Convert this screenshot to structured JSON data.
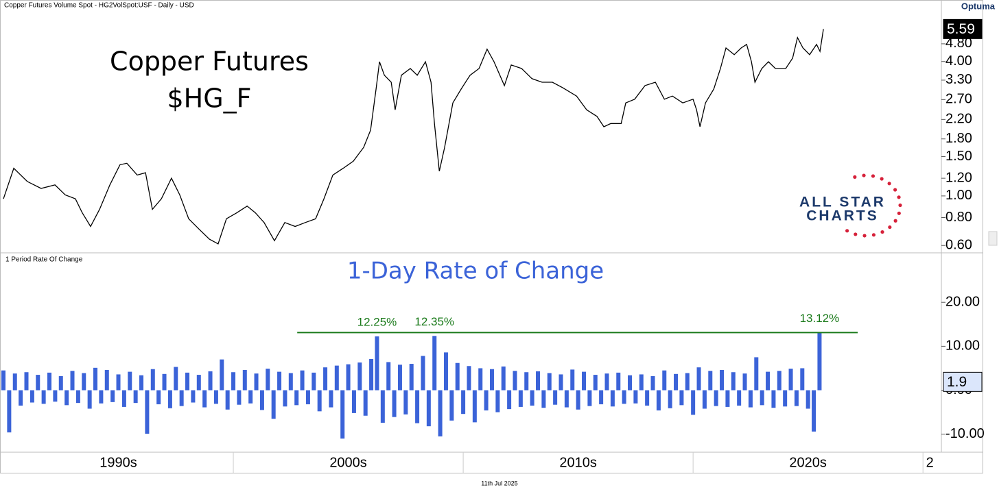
{
  "header": {
    "title": "Copper Futures Volume Spot - HG2VolSpot:USF - Daily - USD",
    "brand": "Optuma",
    "pane2_label": "1 Period Rate Of Change",
    "date": "11th Jul 2025"
  },
  "logo": {
    "line1": "ALL STAR",
    "line2": "CHARTS"
  },
  "chart_data": [
    {
      "type": "line",
      "title": "Copper Futures",
      "subtitle": "$HG_F",
      "log_scale": true,
      "color": "#000000",
      "x": [
        1990.0,
        1990.45,
        1991.04,
        1991.64,
        1992.24,
        1992.69,
        1993.13,
        1993.43,
        1993.79,
        1994.18,
        1994.63,
        1995.07,
        1995.37,
        1995.82,
        1996.18,
        1996.48,
        1996.87,
        1997.31,
        1997.67,
        1998.06,
        1998.51,
        1998.96,
        1999.34,
        1999.7,
        2000.15,
        2000.6,
        2000.96,
        2001.34,
        2001.79,
        2002.24,
        2002.69,
        2003.13,
        2003.58,
        2003.94,
        2004.33,
        2004.78,
        2005.22,
        2005.67,
        2005.97,
        2006.21,
        2006.36,
        2006.57,
        2006.87,
        2007.04,
        2007.31,
        2007.7,
        2008.0,
        2008.36,
        2008.6,
        2008.75,
        2008.96,
        2009.19,
        2009.55,
        2009.91,
        2010.3,
        2010.69,
        2011.04,
        2011.34,
        2011.79,
        2012.09,
        2012.54,
        2012.99,
        2013.43,
        2013.88,
        2014.33,
        2014.93,
        2015.37,
        2015.82,
        2016.12,
        2016.42,
        2016.87,
        2017.07,
        2017.46,
        2017.91,
        2018.36,
        2018.75,
        2019.1,
        2019.55,
        2020.0,
        2020.15,
        2020.3,
        2020.54,
        2020.9,
        2021.19,
        2021.43,
        2021.79,
        2022.09,
        2022.33,
        2022.54,
        2022.69,
        2022.99,
        2023.28,
        2023.58,
        2024.03,
        2024.33,
        2024.54,
        2024.78,
        2025.07,
        2025.37,
        2025.52,
        2025.67
      ],
      "values": [
        0.97,
        1.33,
        1.16,
        1.08,
        1.12,
        1.01,
        0.97,
        0.84,
        0.73,
        0.87,
        1.12,
        1.38,
        1.4,
        1.24,
        1.27,
        0.87,
        0.97,
        1.2,
        1.01,
        0.79,
        0.71,
        0.64,
        0.61,
        0.79,
        0.84,
        0.9,
        0.84,
        0.76,
        0.63,
        0.76,
        0.73,
        0.76,
        0.79,
        0.97,
        1.24,
        1.33,
        1.43,
        1.65,
        1.97,
        3.01,
        3.99,
        3.47,
        3.23,
        2.43,
        3.47,
        3.72,
        3.47,
        3.99,
        3.23,
        2.11,
        1.29,
        1.65,
        2.61,
        3.01,
        3.47,
        3.72,
        4.54,
        3.99,
        3.12,
        3.86,
        3.72,
        3.35,
        3.23,
        3.23,
        3.05,
        2.8,
        2.43,
        2.27,
        2.04,
        2.11,
        2.11,
        2.61,
        2.71,
        3.12,
        3.23,
        2.71,
        2.8,
        2.61,
        2.71,
        2.43,
        2.04,
        2.61,
        3.01,
        3.72,
        4.6,
        4.29,
        4.6,
        4.77,
        3.99,
        3.23,
        3.72,
        3.99,
        3.72,
        3.72,
        4.14,
        5.12,
        4.6,
        4.29,
        4.77,
        4.44,
        5.59
      ],
      "last_value": 5.59,
      "xlim": [
        1990,
        2030.8
      ],
      "ylim": [
        0.56,
        6.64
      ],
      "yticks": [
        {
          "value": 0.6,
          "label": "0.60"
        },
        {
          "value": 0.8,
          "label": "0.80"
        },
        {
          "value": 1,
          "label": "1.00"
        },
        {
          "value": 1.2,
          "label": "1.20"
        },
        {
          "value": 1.5,
          "label": "1.50"
        },
        {
          "value": 1.8,
          "label": "1.80"
        },
        {
          "value": 2.2,
          "label": "2.20"
        },
        {
          "value": 2.7,
          "label": "2.70"
        },
        {
          "value": 3.3,
          "label": "3.30"
        },
        {
          "value": 4,
          "label": "4.00"
        },
        {
          "value": 4.8,
          "label": "4.80"
        }
      ]
    },
    {
      "type": "bar",
      "title": "1-Day Rate of Change",
      "color": "#3b63d8",
      "x": [
        1990,
        1990.25,
        1990.5,
        1990.75,
        1991,
        1991.25,
        1991.5,
        1991.75,
        1992,
        1992.25,
        1992.5,
        1992.75,
        1993,
        1993.25,
        1993.5,
        1993.75,
        1994,
        1994.25,
        1994.5,
        1994.75,
        1995,
        1995.25,
        1995.5,
        1995.75,
        1996,
        1996.25,
        1996.5,
        1996.75,
        1997,
        1997.25,
        1997.5,
        1997.75,
        1998,
        1998.25,
        1998.5,
        1998.75,
        1999,
        1999.25,
        1999.5,
        1999.75,
        2000,
        2000.25,
        2000.5,
        2000.75,
        2001,
        2001.25,
        2001.5,
        2001.75,
        2002,
        2002.25,
        2002.5,
        2002.75,
        2003,
        2003.25,
        2003.5,
        2003.75,
        2004,
        2004.25,
        2004.5,
        2004.75,
        2005,
        2005.25,
        2005.5,
        2005.75,
        2006,
        2006.25,
        2006.5,
        2006.75,
        2007,
        2007.25,
        2007.5,
        2007.75,
        2008,
        2008.25,
        2008.5,
        2008.75,
        2009,
        2009.25,
        2009.5,
        2009.75,
        2010,
        2010.25,
        2010.5,
        2010.75,
        2011,
        2011.25,
        2011.5,
        2011.75,
        2012,
        2012.25,
        2012.5,
        2012.75,
        2013,
        2013.25,
        2013.5,
        2013.75,
        2014,
        2014.25,
        2014.5,
        2014.75,
        2015,
        2015.25,
        2015.5,
        2015.75,
        2016,
        2016.25,
        2016.5,
        2016.75,
        2017,
        2017.25,
        2017.5,
        2017.75,
        2018,
        2018.25,
        2018.5,
        2018.75,
        2019,
        2019.25,
        2019.5,
        2019.75,
        2020,
        2020.25,
        2020.5,
        2020.75,
        2021,
        2021.25,
        2021.5,
        2021.75,
        2022,
        2022.25,
        2022.5,
        2022.75,
        2023,
        2023.25,
        2023.5,
        2023.75,
        2024,
        2024.25,
        2024.5,
        2024.75,
        2025,
        2025.25,
        2025.5
      ],
      "values": [
        4.5,
        -9.6,
        3.8,
        -3.5,
        4.1,
        -2.8,
        3.5,
        -3.1,
        4.0,
        -2.6,
        3.2,
        -3.4,
        4.4,
        -2.9,
        3.9,
        -4.2,
        5.1,
        -3.0,
        4.6,
        -2.7,
        3.6,
        -3.8,
        4.2,
        -2.9,
        3.4,
        -9.9,
        4.8,
        -3.2,
        3.7,
        -4.1,
        5.3,
        -3.6,
        4.0,
        -2.8,
        3.5,
        -3.9,
        4.3,
        -3.1,
        7.0,
        -4.4,
        4.1,
        -3.3,
        4.6,
        -3.0,
        3.8,
        -4.5,
        4.9,
        -6.5,
        4.2,
        -3.7,
        3.9,
        -3.4,
        4.5,
        -3.2,
        4.0,
        -4.8,
        5.2,
        -3.9,
        5.6,
        -11.0,
        5.9,
        -5.2,
        6.3,
        -5.8,
        7.1,
        12.25,
        -7.4,
        6.4,
        -6.1,
        5.8,
        -5.5,
        6.0,
        -7.5,
        7.8,
        -8.2,
        12.35,
        -10.5,
        8.6,
        -6.9,
        6.2,
        -5.4,
        5.5,
        -7.3,
        5.0,
        -4.6,
        4.8,
        -5.0,
        5.4,
        -4.3,
        4.4,
        -3.8,
        4.1,
        -3.5,
        4.3,
        -4.0,
        3.9,
        -3.3,
        3.6,
        -3.9,
        4.7,
        -4.4,
        4.2,
        -3.6,
        3.5,
        -3.2,
        3.8,
        -3.7,
        4.0,
        -3.1,
        3.4,
        -3.0,
        3.6,
        -3.5,
        3.2,
        -4.6,
        4.5,
        -4.1,
        3.7,
        -3.4,
        3.9,
        -5.6,
        5.2,
        -4.2,
        4.4,
        -3.6,
        4.6,
        -3.8,
        4.1,
        -3.5,
        3.8,
        -3.9,
        7.5,
        -3.4,
        4.2,
        -4.0,
        4.4,
        -3.7,
        4.9,
        -3.6,
        5.0,
        -4.2,
        -9.4,
        13.12
      ],
      "last_value": 1.9,
      "annotations": [
        {
          "x": 2006.25,
          "value": 12.25,
          "label": "12.25%"
        },
        {
          "x": 2008.75,
          "value": 12.35,
          "label": "12.35%"
        },
        {
          "x": 2025.5,
          "value": 13.12,
          "label": "13.12%"
        }
      ],
      "threshold": {
        "value": 13.12,
        "x": [
          2002.78,
          2027.16
        ],
        "color": "#1a7a1a"
      },
      "xlim": [
        1990,
        2030.8
      ],
      "ylim": [
        -14.1,
        31.1
      ],
      "yticks": [
        {
          "value": -10,
          "label": "-10.00"
        },
        {
          "value": 0,
          "label": "0.00"
        },
        {
          "value": 10,
          "label": "10.00"
        },
        {
          "value": 20,
          "label": "20.00"
        }
      ],
      "xseparators": [
        2000,
        2010,
        2020,
        2030
      ],
      "xticks": [
        {
          "value": 1995,
          "label": "1990s"
        },
        {
          "value": 2005,
          "label": "2000s"
        },
        {
          "value": 2015,
          "label": "2010s"
        },
        {
          "value": 2025,
          "label": "2020s"
        },
        {
          "value": 2030.3,
          "label": "2"
        }
      ]
    }
  ]
}
